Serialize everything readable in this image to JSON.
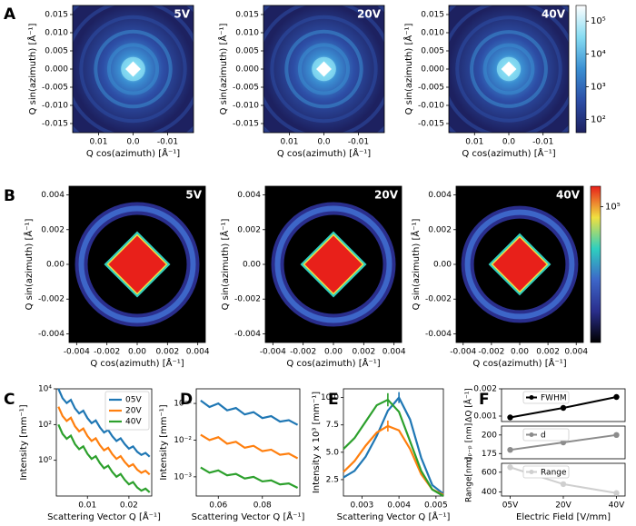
{
  "chart_data": [
    {
      "type": "heatmap",
      "panel": "A",
      "annotation": "5V",
      "xlabel": "Q cos(azimuth) [Å⁻¹]",
      "ylabel": "Q sin(azimuth) [Å⁻¹]",
      "xlim": [
        0.0175,
        -0.0175
      ],
      "ylim": [
        -0.0175,
        0.0175
      ],
      "xticks": [
        0.01,
        {
          "value": 0,
          "label": "0.0"
        },
        -0.01
      ],
      "yticks": [
        -0.015,
        {
          "value": -0.01,
          "label": "-0.010"
        },
        -0.005,
        {
          "value": 0,
          "label": "0.000"
        },
        0.005,
        {
          "value": 0.01,
          "label": "0.010"
        },
        0.015
      ],
      "colormap": [
        "#1d2160",
        "#2d4ea6",
        "#3b8fd2",
        "#86dcf2",
        "#ffffff"
      ]
    },
    {
      "type": "heatmap",
      "annotation": "20V",
      "xlabel": "Q cos(azimuth) [Å⁻¹]",
      "ylabel": "Q sin(azimuth) [Å⁻¹]",
      "xlim": [
        0.0175,
        -0.0175
      ],
      "ylim": [
        -0.0175,
        0.0175
      ],
      "xticks": [
        0.01,
        {
          "value": 0,
          "label": "0.0"
        },
        -0.01
      ],
      "yticks": [
        -0.015,
        {
          "value": -0.01,
          "label": "-0.010"
        },
        -0.005,
        {
          "value": 0,
          "label": "0.000"
        },
        0.005,
        {
          "value": 0.01,
          "label": "0.010"
        },
        0.015
      ],
      "colormap": [
        "#1d2160",
        "#2d4ea6",
        "#3b8fd2",
        "#86dcf2",
        "#ffffff"
      ]
    },
    {
      "type": "heatmap",
      "annotation": "40V",
      "xlabel": "Q cos(azimuth) [Å⁻¹]",
      "ylabel": "Q sin(azimuth) [Å⁻¹]",
      "xlim": [
        0.0175,
        -0.0175
      ],
      "ylim": [
        -0.0175,
        0.0175
      ],
      "xticks": [
        0.01,
        {
          "value": 0,
          "label": "0.0"
        },
        -0.01
      ],
      "yticks": [
        -0.015,
        {
          "value": -0.01,
          "label": "-0.010"
        },
        -0.005,
        {
          "value": 0,
          "label": "0.000"
        },
        0.005,
        {
          "value": 0.01,
          "label": "0.010"
        },
        0.015
      ],
      "colormap": [
        "#1d2160",
        "#2d4ea6",
        "#3b8fd2",
        "#86dcf2",
        "#ffffff"
      ],
      "colorbar": {
        "log_scale": true,
        "lim": [
          40,
          300000
        ],
        "ticks": [
          {
            "value": 100,
            "label": "10²"
          },
          {
            "value": 1000,
            "label": "10³"
          },
          {
            "value": 10000,
            "label": "10⁴"
          },
          {
            "value": 100000,
            "label": "10⁵"
          }
        ]
      }
    },
    {
      "type": "heatmap",
      "panel": "B",
      "annotation": "5V",
      "xlabel": "Q cos(azimuth) [Å⁻¹]",
      "ylabel": "Q sin(azimuth) [Å⁻¹]",
      "xlim": [
        -0.0045,
        0.0045
      ],
      "ylim": [
        -0.0045,
        0.0045
      ],
      "xticks": [
        -0.004,
        -0.002,
        {
          "value": 0,
          "label": "0.00"
        },
        0.002,
        0.004
      ],
      "yticks": [
        -0.004,
        -0.002,
        {
          "value": 0,
          "label": "0.00"
        },
        0.002,
        0.004
      ],
      "colormap": [
        "#000000",
        "#2a2e8c",
        "#3d66c8",
        "#2fcfbf",
        "#f0e040",
        "#e8201a"
      ]
    },
    {
      "type": "heatmap",
      "annotation": "20V",
      "xlabel": "Q cos(azimuth) [Å⁻¹]",
      "ylabel": "Q sin(azimuth) [Å⁻¹]",
      "xlim": [
        -0.0045,
        0.0045
      ],
      "ylim": [
        -0.0045,
        0.0045
      ],
      "xticks": [
        -0.004,
        -0.002,
        {
          "value": 0,
          "label": "0.00"
        },
        0.002,
        0.004
      ],
      "yticks": [
        -0.004,
        -0.002,
        {
          "value": 0,
          "label": "0.00"
        },
        0.002,
        0.004
      ],
      "colormap": [
        "#000000",
        "#2a2e8c",
        "#3d66c8",
        "#2fcfbf",
        "#f0e040",
        "#e8201a"
      ]
    },
    {
      "type": "heatmap",
      "annotation": "40V",
      "xlabel": "Q cos(azimuth) [Å⁻¹]",
      "ylabel": "Q sin(azimuth) [Å⁻¹]",
      "xlim": [
        -0.0045,
        0.0045
      ],
      "ylim": [
        -0.0045,
        0.0045
      ],
      "xticks": [
        -0.004,
        -0.002,
        {
          "value": 0,
          "label": "0.00"
        },
        0.002,
        0.004
      ],
      "yticks": [
        -0.004,
        -0.002,
        {
          "value": 0,
          "label": "0.00"
        },
        0.002,
        0.004
      ],
      "colormap": [
        "#000000",
        "#2a2e8c",
        "#3d66c8",
        "#2fcfbf",
        "#f0e040",
        "#e8201a"
      ],
      "colorbar": {
        "log_scale": true,
        "lim": [
          1000,
          200000
        ],
        "ticks": [
          {
            "value": 100000,
            "label": "10⁵"
          }
        ]
      }
    },
    {
      "type": "line",
      "panel": "C",
      "xlabel": "Scattering Vector Q [Å⁻¹]",
      "ylabel": "Intensity [mm⁻¹]",
      "log_y": true,
      "legend": "upper right",
      "x": [
        0.003,
        0.004,
        0.005,
        0.006,
        0.007,
        0.008,
        0.009,
        0.01,
        0.011,
        0.012,
        0.013,
        0.014,
        0.015,
        0.016,
        0.017,
        0.018,
        0.019,
        0.02,
        0.021,
        0.022,
        0.023,
        0.024,
        0.025
      ],
      "xlim": [
        0.0025,
        0.0255
      ],
      "ylim": [
        0.01,
        10000
      ],
      "xticks": [
        0.01,
        0.02
      ],
      "yticks": [
        {
          "value": 1,
          "label": "10⁰"
        },
        {
          "value": 100,
          "label": "10²"
        },
        {
          "value": 10000,
          "label": "10⁴"
        }
      ],
      "series": [
        {
          "name": "05V",
          "color": "#1f77b4",
          "values": [
            10000,
            3000,
            1600,
            2400,
            800,
            420,
            600,
            230,
            120,
            170,
            70,
            36,
            50,
            22,
            12,
            17,
            8,
            4.5,
            6,
            3,
            2,
            2.6,
            1.6
          ]
        },
        {
          "name": "20V",
          "color": "#ff7f0e",
          "values": [
            1000,
            300,
            160,
            240,
            80,
            42,
            60,
            23,
            12,
            17,
            7,
            3.6,
            5,
            2.2,
            1.2,
            1.7,
            0.8,
            0.45,
            0.6,
            0.3,
            0.2,
            0.26,
            0.16
          ]
        },
        {
          "name": "40V",
          "color": "#2ca02c",
          "values": [
            100,
            30,
            16,
            24,
            8,
            4.2,
            6,
            2.3,
            1.2,
            1.7,
            0.7,
            0.36,
            0.5,
            0.22,
            0.12,
            0.17,
            0.08,
            0.045,
            0.06,
            0.03,
            0.02,
            0.026,
            0.016
          ]
        }
      ]
    },
    {
      "type": "line",
      "panel": "D",
      "xlabel": "Scattering Vector Q [Å⁻¹]",
      "ylabel": "Intensity [mm⁻¹]",
      "log_y": true,
      "x": [
        0.052,
        0.056,
        0.06,
        0.064,
        0.068,
        0.072,
        0.076,
        0.08,
        0.084,
        0.088,
        0.092,
        0.096
      ],
      "xlim": [
        0.05,
        0.097
      ],
      "ylim": [
        0.0003,
        0.25
      ],
      "xticks": [
        0.06,
        0.08
      ],
      "yticks": [
        {
          "value": 0.001,
          "label": "10⁻³"
        },
        {
          "value": 0.01,
          "label": "10⁻²"
        },
        {
          "value": 0.1,
          "label": "10⁻¹"
        }
      ],
      "series": [
        {
          "color": "#1f77b4",
          "values": [
            0.12,
            0.08,
            0.1,
            0.065,
            0.075,
            0.05,
            0.058,
            0.04,
            0.045,
            0.032,
            0.035,
            0.026
          ]
        },
        {
          "color": "#ff7f0e",
          "values": [
            0.014,
            0.01,
            0.012,
            0.008,
            0.009,
            0.0062,
            0.007,
            0.005,
            0.0055,
            0.004,
            0.0043,
            0.0032
          ]
        },
        {
          "color": "#2ca02c",
          "values": [
            0.0018,
            0.0013,
            0.0015,
            0.0011,
            0.0012,
            0.0009,
            0.001,
            0.00075,
            0.0008,
            0.00062,
            0.00066,
            0.0005
          ]
        }
      ]
    },
    {
      "type": "line",
      "panel": "E",
      "xlabel": "Scattering Vector Q [Å⁻¹]",
      "ylabel": "Intensity x 10³ [mm⁻¹]",
      "x": [
        0.0025,
        0.0028,
        0.0031,
        0.0034,
        0.0037,
        0.004,
        0.0043,
        0.0046,
        0.0049,
        0.0052
      ],
      "xlim": [
        0.0025,
        0.0052
      ],
      "ylim": [
        1,
        10.8
      ],
      "xticks": [
        0.003,
        0.004,
        0.005
      ],
      "yticks": [
        2.5,
        {
          "value": 5,
          "label": "5.0"
        },
        7.5,
        {
          "value": 10,
          "label": "10.0"
        }
      ],
      "series": [
        {
          "color": "#1f77b4",
          "values": [
            2.7,
            3.3,
            4.6,
            6.5,
            8.8,
            10.0,
            8.0,
            4.5,
            2.0,
            1.2
          ],
          "errors": [
            null,
            null,
            null,
            null,
            null,
            0.5,
            null,
            null,
            null,
            null
          ]
        },
        {
          "color": "#ff7f0e",
          "values": [
            3.2,
            4.2,
            5.6,
            6.8,
            7.4,
            7.0,
            5.3,
            3.0,
            1.6,
            1.1
          ],
          "errors": [
            null,
            null,
            null,
            null,
            0.5,
            null,
            null,
            null,
            null,
            null
          ]
        },
        {
          "color": "#2ca02c",
          "values": [
            5.3,
            6.3,
            7.8,
            9.3,
            9.8,
            8.7,
            6.0,
            3.3,
            1.6,
            1.0
          ],
          "errors": [
            null,
            null,
            null,
            null,
            0.6,
            null,
            null,
            null,
            null,
            null
          ]
        }
      ]
    },
    {
      "type": "stacked_line",
      "panel": "F",
      "xlabel": "Electric Field [V/mm]",
      "categories": [
        "05V",
        "20V",
        "40V"
      ],
      "legend": "upper left",
      "series": [
        {
          "name": "FWHM",
          "color": "#000000",
          "ylabel": "ΔQ [Å⁻¹]",
          "values": [
            0.00095,
            0.0013,
            0.0017
          ],
          "ylim": [
            0.0008,
            0.002
          ],
          "yticks": [
            0.001,
            0.002
          ]
        },
        {
          "name": "d",
          "color": "#8c8c8c",
          "ylabel": "dₚ₋ₚ [nm]",
          "values": [
            180,
            190,
            200
          ],
          "ylim": [
            168,
            212
          ],
          "yticks": [
            175,
            200
          ]
        },
        {
          "name": "Range",
          "color": "#cfcfcf",
          "ylabel": "Range[nm]",
          "values": [
            650,
            480,
            390
          ],
          "ylim": [
            360,
            690
          ],
          "yticks": [
            400,
            600
          ]
        }
      ]
    }
  ]
}
